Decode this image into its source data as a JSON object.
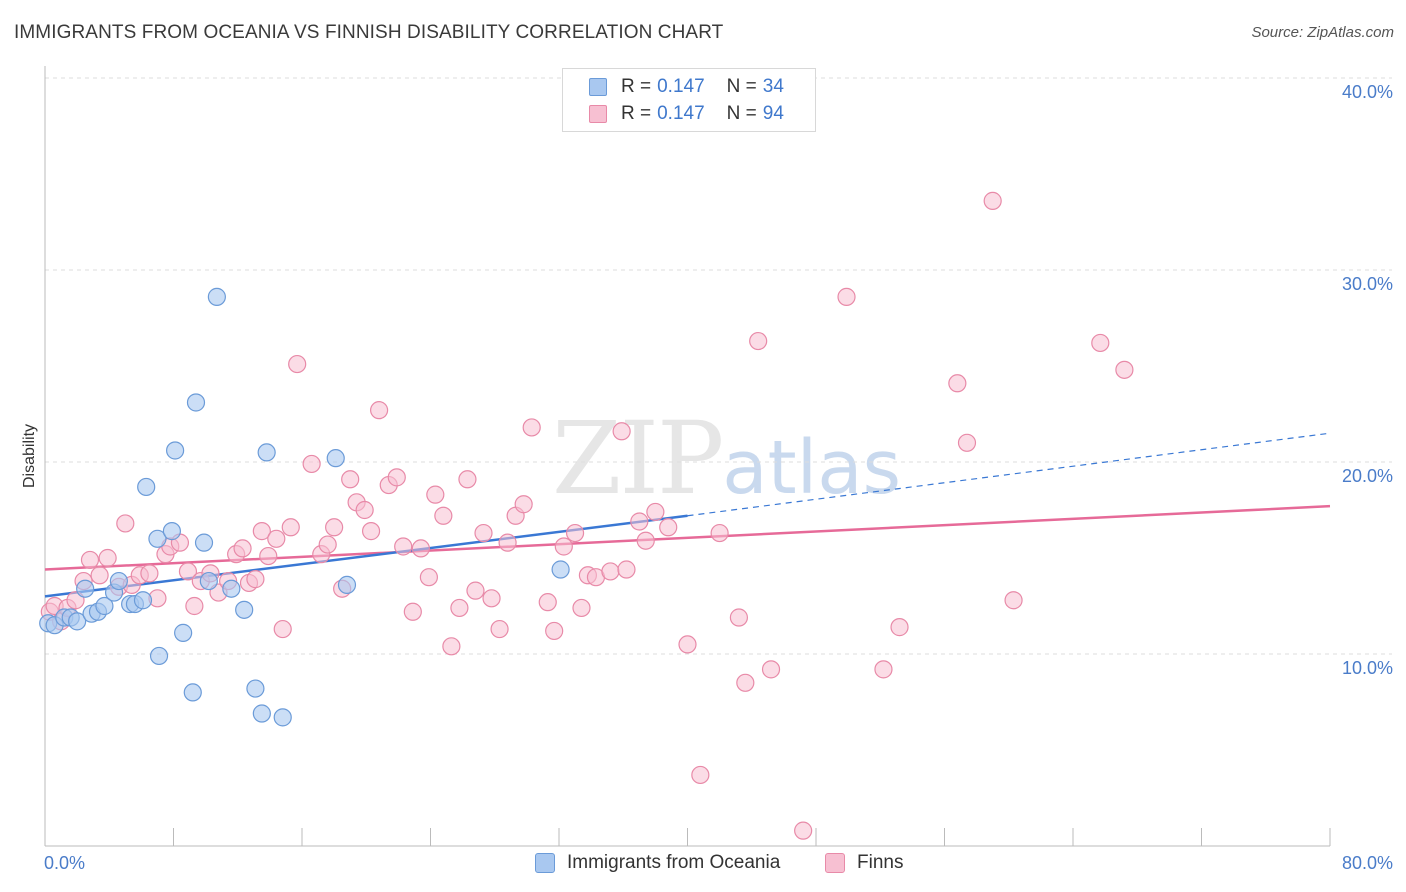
{
  "header": {
    "title": "IMMIGRANTS FROM OCEANIA VS FINNISH DISABILITY CORRELATION CHART",
    "source": "Source: ZipAtlas.com"
  },
  "watermark": {
    "zip": "ZIP",
    "atlas": "atlas"
  },
  "legend": {
    "rows": [
      {
        "r_label": "R = ",
        "r_value": "0.147",
        "n_label": "N = ",
        "n_value": "34"
      },
      {
        "r_label": "R = ",
        "r_value": "0.147",
        "n_label": "N = ",
        "n_value": "94"
      }
    ]
  },
  "bottom_legend": {
    "series1": "Immigrants from Oceania",
    "series2": "Finns"
  },
  "colors": {
    "blue_fill": "#a9c8f0",
    "blue_stroke": "#6b9bd8",
    "blue_line": "#3a78d4",
    "pink_fill": "#f7c0d2",
    "pink_stroke": "#e88aa8",
    "pink_line": "#e66a98",
    "tick_text": "#4a7cc9",
    "grid": "#dddddd"
  },
  "chart_data": {
    "type": "scatter",
    "title": "IMMIGRANTS FROM OCEANIA VS FINNISH DISABILITY CORRELATION CHART",
    "xlabel": "",
    "ylabel": "Disability",
    "xlim": [
      0,
      80
    ],
    "ylim": [
      0,
      40
    ],
    "x_tick_labels": [
      "0.0%",
      "80.0%"
    ],
    "y_ticks": [
      10,
      20,
      30,
      40
    ],
    "y_tick_labels": [
      "10.0%",
      "20.0%",
      "30.0%",
      "40.0%"
    ],
    "grid": true,
    "legend_position": "top-center",
    "series": [
      {
        "name": "Immigrants from Oceania",
        "color": "#a9c8f0",
        "trend": {
          "x": [
            0,
            40
          ],
          "y": [
            13.0,
            17.2
          ],
          "dashed_to": [
            80,
            21.5
          ]
        },
        "points": [
          [
            0.2,
            11.6
          ],
          [
            0.6,
            11.5
          ],
          [
            1.2,
            11.9
          ],
          [
            1.6,
            11.9
          ],
          [
            2.0,
            11.7
          ],
          [
            2.5,
            13.4
          ],
          [
            2.9,
            12.1
          ],
          [
            3.3,
            12.2
          ],
          [
            3.7,
            12.5
          ],
          [
            4.3,
            13.2
          ],
          [
            4.6,
            13.8
          ],
          [
            5.3,
            12.6
          ],
          [
            5.6,
            12.6
          ],
          [
            6.1,
            12.8
          ],
          [
            6.3,
            18.7
          ],
          [
            7.0,
            16.0
          ],
          [
            7.1,
            9.9
          ],
          [
            7.9,
            16.4
          ],
          [
            8.1,
            20.6
          ],
          [
            8.6,
            11.1
          ],
          [
            9.2,
            8.0
          ],
          [
            9.4,
            23.1
          ],
          [
            9.9,
            15.8
          ],
          [
            10.2,
            13.8
          ],
          [
            10.7,
            28.6
          ],
          [
            11.6,
            13.4
          ],
          [
            12.4,
            12.3
          ],
          [
            13.1,
            8.2
          ],
          [
            13.5,
            6.9
          ],
          [
            13.8,
            20.5
          ],
          [
            14.8,
            6.7
          ],
          [
            18.1,
            20.2
          ],
          [
            18.8,
            13.6
          ],
          [
            32.1,
            14.4
          ]
        ]
      },
      {
        "name": "Finns",
        "color": "#f7c0d2",
        "trend": {
          "x": [
            0,
            80
          ],
          "y": [
            14.4,
            17.7
          ]
        },
        "points": [
          [
            0.3,
            12.2
          ],
          [
            0.6,
            12.5
          ],
          [
            1.0,
            11.7
          ],
          [
            1.4,
            12.4
          ],
          [
            1.9,
            12.8
          ],
          [
            2.4,
            13.8
          ],
          [
            2.8,
            14.9
          ],
          [
            3.4,
            14.1
          ],
          [
            3.9,
            15.0
          ],
          [
            4.6,
            13.5
          ],
          [
            5.0,
            16.8
          ],
          [
            5.4,
            13.6
          ],
          [
            5.9,
            14.1
          ],
          [
            6.5,
            14.2
          ],
          [
            7.0,
            12.9
          ],
          [
            7.5,
            15.2
          ],
          [
            7.8,
            15.6
          ],
          [
            8.4,
            15.8
          ],
          [
            8.9,
            14.3
          ],
          [
            9.3,
            12.5
          ],
          [
            9.7,
            13.8
          ],
          [
            10.3,
            14.2
          ],
          [
            10.8,
            13.2
          ],
          [
            11.4,
            13.8
          ],
          [
            11.9,
            15.2
          ],
          [
            12.3,
            15.5
          ],
          [
            12.7,
            13.7
          ],
          [
            13.1,
            13.9
          ],
          [
            13.5,
            16.4
          ],
          [
            13.9,
            15.1
          ],
          [
            14.4,
            16.0
          ],
          [
            14.8,
            11.3
          ],
          [
            15.3,
            16.6
          ],
          [
            15.7,
            25.1
          ],
          [
            16.6,
            19.9
          ],
          [
            17.2,
            15.2
          ],
          [
            17.6,
            15.7
          ],
          [
            18.0,
            16.6
          ],
          [
            18.5,
            13.4
          ],
          [
            19.0,
            19.1
          ],
          [
            19.4,
            17.9
          ],
          [
            19.9,
            17.5
          ],
          [
            20.3,
            16.4
          ],
          [
            20.8,
            22.7
          ],
          [
            21.4,
            18.8
          ],
          [
            21.9,
            19.2
          ],
          [
            22.3,
            15.6
          ],
          [
            22.9,
            12.2
          ],
          [
            23.4,
            15.5
          ],
          [
            23.9,
            14.0
          ],
          [
            24.3,
            18.3
          ],
          [
            24.8,
            17.2
          ],
          [
            25.3,
            10.4
          ],
          [
            25.8,
            12.4
          ],
          [
            26.3,
            19.1
          ],
          [
            26.8,
            13.3
          ],
          [
            27.3,
            16.3
          ],
          [
            27.8,
            12.9
          ],
          [
            28.3,
            11.3
          ],
          [
            28.8,
            15.8
          ],
          [
            29.3,
            17.2
          ],
          [
            29.8,
            17.8
          ],
          [
            30.3,
            21.8
          ],
          [
            31.3,
            12.7
          ],
          [
            31.7,
            11.2
          ],
          [
            32.3,
            15.6
          ],
          [
            33.0,
            16.3
          ],
          [
            33.4,
            12.4
          ],
          [
            33.8,
            14.1
          ],
          [
            34.3,
            14.0
          ],
          [
            35.2,
            14.3
          ],
          [
            35.9,
            21.6
          ],
          [
            36.2,
            14.4
          ],
          [
            37.0,
            16.9
          ],
          [
            37.4,
            15.9
          ],
          [
            38.0,
            17.4
          ],
          [
            38.8,
            16.6
          ],
          [
            40.0,
            10.5
          ],
          [
            40.8,
            3.7
          ],
          [
            42.0,
            16.3
          ],
          [
            43.2,
            11.9
          ],
          [
            43.6,
            8.5
          ],
          [
            44.4,
            26.3
          ],
          [
            45.2,
            9.2
          ],
          [
            47.2,
            0.8
          ],
          [
            49.9,
            28.6
          ],
          [
            52.2,
            9.2
          ],
          [
            53.2,
            11.4
          ],
          [
            56.8,
            24.1
          ],
          [
            57.4,
            21.0
          ],
          [
            59.0,
            33.6
          ],
          [
            60.3,
            12.8
          ],
          [
            65.7,
            26.2
          ],
          [
            67.2,
            24.8
          ]
        ]
      }
    ]
  }
}
